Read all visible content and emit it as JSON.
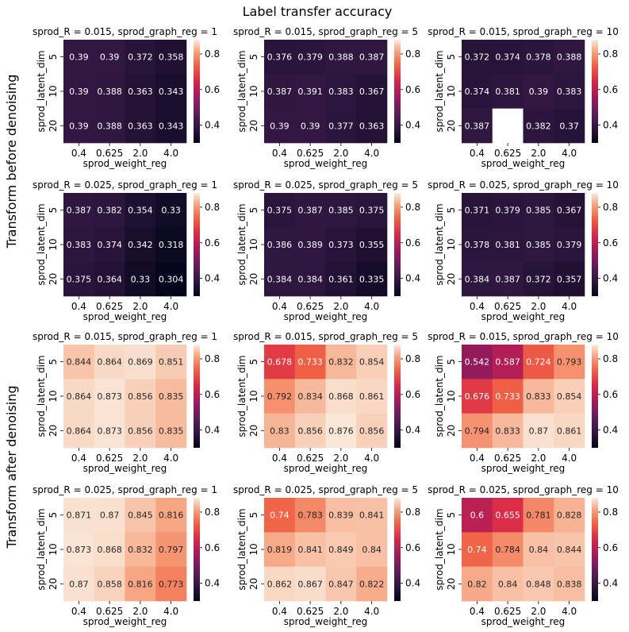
{
  "chart_data": {
    "type": "heatmap",
    "title": "Label transfer accuracy",
    "row_group_labels": [
      "Transform before denoising",
      "Transform after denoising"
    ],
    "xlabel": "sprod_weight_reg",
    "ylabel": "sprod_latent_dim",
    "x_ticks": [
      "0.4",
      "0.625",
      "2.0",
      "4.0"
    ],
    "y_ticks": [
      "5",
      "10",
      "20"
    ],
    "colorbar": {
      "vmin": 0.3,
      "vmax": 0.88,
      "ticks": [
        "0.4",
        "0.6",
        "0.8"
      ]
    },
    "panels": [
      {
        "title": "sprod_R = 0.015, sprod_graph_reg = 1",
        "values": [
          [
            0.39,
            0.39,
            0.372,
            0.358
          ],
          [
            0.39,
            0.388,
            0.363,
            0.343
          ],
          [
            0.39,
            0.388,
            0.363,
            0.343
          ]
        ]
      },
      {
        "title": "sprod_R = 0.015, sprod_graph_reg = 5",
        "values": [
          [
            0.376,
            0.379,
            0.388,
            0.387
          ],
          [
            0.387,
            0.391,
            0.383,
            0.367
          ],
          [
            0.39,
            0.39,
            0.377,
            0.363
          ]
        ]
      },
      {
        "title": "sprod_R = 0.015, sprod_graph_reg = 10",
        "values": [
          [
            0.372,
            0.374,
            0.378,
            0.388
          ],
          [
            0.374,
            0.381,
            0.39,
            0.383
          ],
          [
            0.387,
            null,
            0.382,
            0.37
          ]
        ]
      },
      {
        "title": "sprod_R = 0.025, sprod_graph_reg = 1",
        "values": [
          [
            0.387,
            0.382,
            0.354,
            0.33
          ],
          [
            0.383,
            0.374,
            0.342,
            0.318
          ],
          [
            0.375,
            0.364,
            0.33,
            0.304
          ]
        ]
      },
      {
        "title": "sprod_R = 0.025, sprod_graph_reg = 5",
        "values": [
          [
            0.375,
            0.387,
            0.385,
            0.375
          ],
          [
            0.386,
            0.389,
            0.373,
            0.355
          ],
          [
            0.384,
            0.384,
            0.361,
            0.335
          ]
        ]
      },
      {
        "title": "sprod_R = 0.025, sprod_graph_reg = 10",
        "values": [
          [
            0.371,
            0.379,
            0.385,
            0.367
          ],
          [
            0.378,
            0.381,
            0.385,
            0.379
          ],
          [
            0.384,
            0.387,
            0.372,
            0.357
          ]
        ]
      },
      {
        "title": "sprod_R = 0.015, sprod_graph_reg = 1",
        "values": [
          [
            0.844,
            0.864,
            0.869,
            0.851
          ],
          [
            0.864,
            0.873,
            0.856,
            0.835
          ],
          [
            0.864,
            0.873,
            0.856,
            0.835
          ]
        ]
      },
      {
        "title": "sprod_R = 0.015, sprod_graph_reg = 5",
        "values": [
          [
            0.678,
            0.733,
            0.832,
            0.854
          ],
          [
            0.792,
            0.834,
            0.868,
            0.861
          ],
          [
            0.83,
            0.856,
            0.876,
            0.856
          ]
        ]
      },
      {
        "title": "sprod_R = 0.015, sprod_graph_reg = 10",
        "values": [
          [
            0.542,
            0.587,
            0.724,
            0.793
          ],
          [
            0.676,
            0.733,
            0.833,
            0.854
          ],
          [
            0.794,
            0.833,
            0.87,
            0.861
          ]
        ]
      },
      {
        "title": "sprod_R = 0.025, sprod_graph_reg = 1",
        "values": [
          [
            0.871,
            0.87,
            0.845,
            0.816
          ],
          [
            0.873,
            0.868,
            0.832,
            0.797
          ],
          [
            0.87,
            0.858,
            0.816,
            0.773
          ]
        ]
      },
      {
        "title": "sprod_R = 0.025, sprod_graph_reg = 5",
        "values": [
          [
            0.74,
            0.783,
            0.839,
            0.841
          ],
          [
            0.819,
            0.841,
            0.849,
            0.84
          ],
          [
            0.862,
            0.867,
            0.847,
            0.822
          ]
        ]
      },
      {
        "title": "sprod_R = 0.025, sprod_graph_reg = 10",
        "values": [
          [
            0.6,
            0.655,
            0.781,
            0.828
          ],
          [
            0.74,
            0.784,
            0.84,
            0.844
          ],
          [
            0.82,
            0.84,
            0.848,
            0.838
          ]
        ]
      }
    ]
  }
}
